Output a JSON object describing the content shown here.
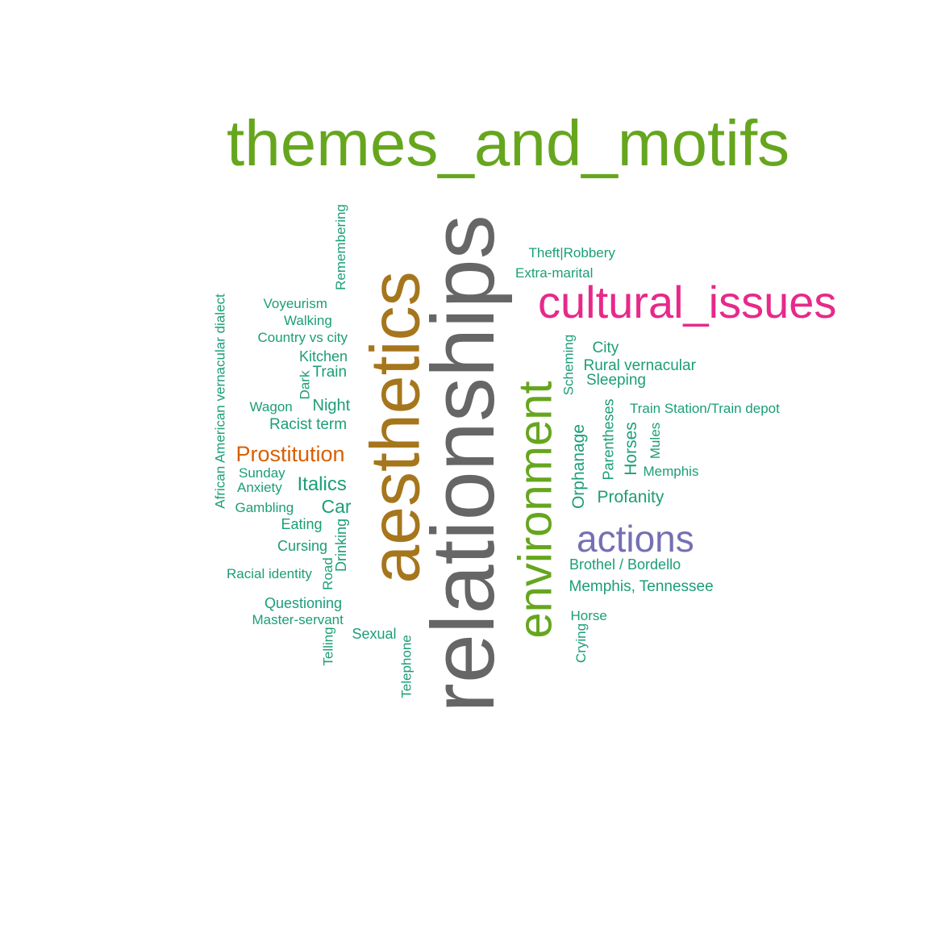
{
  "colors": {
    "themes": "#66a61e",
    "relationships": "#666666",
    "aesthetics": "#a6761d",
    "cultural": "#e7298a",
    "actions": "#7570b3",
    "prostitution": "#d95f02",
    "small": "#1b9e77"
  },
  "words": {
    "themes_and_motifs": "themes_and_motifs",
    "relationships": "relationships",
    "aesthetics": "aesthetics",
    "environment": "environment",
    "cultural_issues": "cultural_issues",
    "actions": "actions",
    "prostitution": "Prostitution",
    "theft": "Theft|Robbery",
    "extra_marital": "Extra-marital",
    "remembering": "Remembering",
    "aav_dialect": "African American vernacular dialect",
    "voyeurism": "Voyeurism",
    "walking": "Walking",
    "country_vs_city": "Country vs city",
    "kitchen": "Kitchen",
    "train": "Train",
    "dark": "Dark",
    "wagon": "Wagon",
    "night": "Night",
    "racist_term": "Racist term",
    "sunday": "Sunday",
    "anxiety": "Anxiety",
    "italics": "Italics",
    "gambling": "Gambling",
    "car": "Car",
    "eating": "Eating",
    "drinking": "Drinking",
    "cursing": "Cursing",
    "road": "Road",
    "racial_identity": "Racial identity",
    "questioning": "Questioning",
    "master_servant": "Master-servant",
    "telling": "Telling",
    "sexual": "Sexual",
    "telephone": "Telephone",
    "scheming": "Scheming",
    "city": "City",
    "rural_vernacular": "Rural vernacular",
    "sleeping": "Sleeping",
    "train_station": "Train Station/Train depot",
    "orphanage": "Orphanage",
    "parentheses": "Parentheses",
    "horses": "Horses",
    "mules": "Mules",
    "memphis": "Memphis",
    "profanity": "Profanity",
    "brothel": "Brothel / Bordello",
    "memphis_tennessee": "Memphis, Tennessee",
    "horse": "Horse",
    "crying": "Crying"
  }
}
